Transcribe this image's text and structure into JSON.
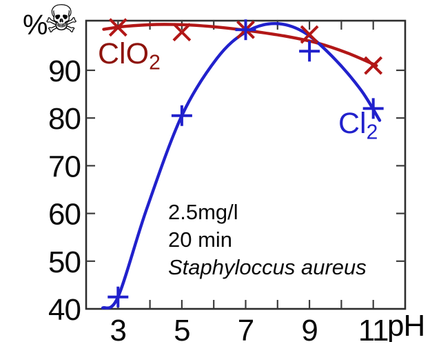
{
  "header": {
    "y_unit_label": "%",
    "hazard_icon": "skull-and-crossbones",
    "hazard_glyph": "☠"
  },
  "labels": {
    "clo2": {
      "text": "ClO",
      "sub": "2"
    },
    "cl2": {
      "text": "Cl",
      "sub": "2"
    }
  },
  "colors": {
    "clo2_curve": "#b21717",
    "clo2_label": "#8e130c",
    "cl2_curve": "#2121cc",
    "cl2_label": "#2121cc",
    "axis": "#2d2d2d",
    "tick": "#3c3c3c",
    "text": "#0a0a0a",
    "background": "#ffffff"
  },
  "chart_data": {
    "type": "line",
    "title": "",
    "xlabel": "pH",
    "ylabel": "%",
    "xlim": [
      2,
      12
    ],
    "ylim": [
      40,
      100.4
    ],
    "x_ticks": [
      3,
      4,
      5,
      6,
      7,
      8,
      9,
      10,
      11
    ],
    "x_tick_labels_at": [
      3,
      5,
      7,
      9,
      11
    ],
    "y_ticks": [
      40,
      50,
      60,
      70,
      80,
      90
    ],
    "grid": false,
    "legend_position": "inline-labels",
    "series": [
      {
        "name": "ClO2",
        "marker": "x",
        "color": "#b21717",
        "x": [
          3,
          5,
          7,
          9,
          11
        ],
        "y": [
          99,
          98,
          98.5,
          97.5,
          91
        ],
        "curve": [
          [
            2.55,
            98.6
          ],
          [
            3.2,
            99.2
          ],
          [
            4.2,
            99.6
          ],
          [
            5.2,
            99.5
          ],
          [
            6.2,
            99.0
          ],
          [
            7.2,
            98.2
          ],
          [
            8.2,
            97.2
          ],
          [
            9.2,
            95.8
          ],
          [
            10.2,
            93.6
          ],
          [
            11.1,
            91.0
          ]
        ]
      },
      {
        "name": "Cl2",
        "marker": "+",
        "color": "#2121cc",
        "x": [
          3,
          5,
          7,
          9,
          11
        ],
        "y": [
          42.5,
          80.5,
          98.5,
          94,
          82
        ],
        "curve": [
          [
            2.52,
            40.2
          ],
          [
            3.0,
            42.5
          ],
          [
            3.9,
            61.0
          ],
          [
            5.0,
            80.5
          ],
          [
            6.1,
            92.5
          ],
          [
            7.0,
            98.0
          ],
          [
            7.9,
            99.8
          ],
          [
            8.8,
            98.1
          ],
          [
            9.7,
            93.0
          ],
          [
            10.6,
            86.0
          ],
          [
            11.2,
            79.5
          ]
        ]
      }
    ],
    "annotations": [
      "2.5mg/l",
      "20 min",
      "Staphyloccus aureus"
    ]
  }
}
